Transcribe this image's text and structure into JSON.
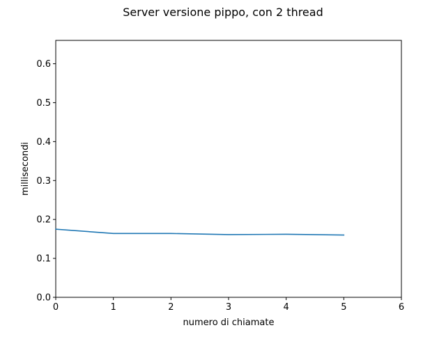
{
  "chart_data": {
    "type": "line",
    "title": "Server versione pippo, con 2 thread",
    "xlabel": "numero di chiamate",
    "ylabel": "millisecondi",
    "xlim": [
      0,
      6
    ],
    "ylim": [
      0,
      0.66
    ],
    "xticks": [
      0,
      1,
      2,
      3,
      4,
      5,
      6
    ],
    "yticks": [
      0.0,
      0.1,
      0.2,
      0.3,
      0.4,
      0.5,
      0.6
    ],
    "ytick_labels": [
      "0.0",
      "0.1",
      "0.2",
      "0.3",
      "0.4",
      "0.5",
      "0.6"
    ],
    "grid": false,
    "legend": null,
    "series": [
      {
        "color": "#1f77b4",
        "x": [
          0,
          1,
          2,
          3,
          4,
          5
        ],
        "y": [
          0.175,
          0.164,
          0.164,
          0.161,
          0.162,
          0.16
        ]
      }
    ]
  }
}
